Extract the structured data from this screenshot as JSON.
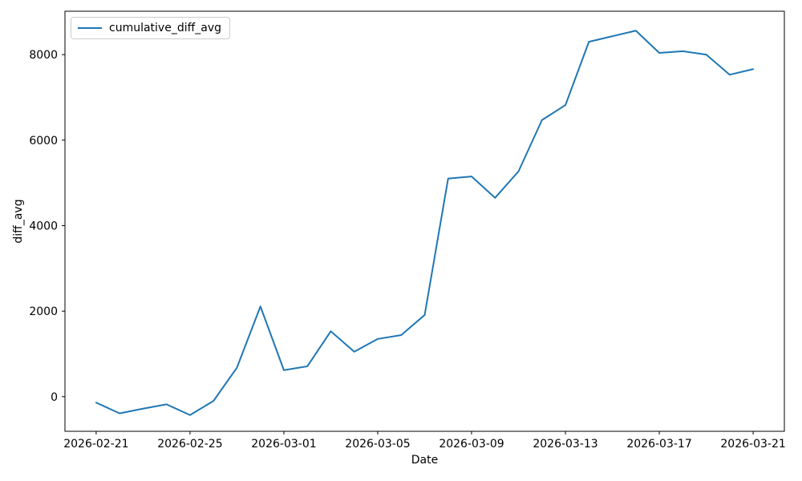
{
  "figure": {
    "xlabel": "Date",
    "ylabel": "diff_avg",
    "legend_label": "cumulative_diff_avg",
    "background_color": "#ffffff",
    "text_color": "#000000"
  },
  "chart_data": {
    "type": "line",
    "title": "",
    "xlabel": "Date",
    "ylabel": "diff_avg",
    "grid": false,
    "legend_position": "upper-left",
    "line_color": "#1f77b4",
    "axis_color": "#000000",
    "series": [
      {
        "name": "cumulative_diff_avg",
        "x": [
          "2026-02-21",
          "2026-02-22",
          "2026-02-23",
          "2026-02-24",
          "2026-02-25",
          "2026-02-26",
          "2026-02-27",
          "2026-02-28",
          "2026-03-01",
          "2026-03-02",
          "2026-03-03",
          "2026-03-04",
          "2026-03-05",
          "2026-03-06",
          "2026-03-07",
          "2026-03-08",
          "2026-03-09",
          "2026-03-10",
          "2026-03-11",
          "2026-03-12",
          "2026-03-13",
          "2026-03-14",
          "2026-03-15",
          "2026-03-16",
          "2026-03-17",
          "2026-03-18",
          "2026-03-19",
          "2026-03-20",
          "2026-03-21"
        ],
        "values": [
          -140,
          -390,
          -280,
          -180,
          -430,
          -100,
          680,
          2110,
          620,
          710,
          1530,
          1050,
          1350,
          1440,
          1910,
          5100,
          5150,
          4650,
          5270,
          6470,
          6820,
          8300,
          8430,
          8560,
          8040,
          8080,
          8000,
          7530,
          7660
        ]
      }
    ],
    "xticks": {
      "days": [
        0,
        4,
        8,
        12,
        16,
        20,
        24,
        28
      ],
      "labels": [
        "2026-02-21",
        "2026-02-25",
        "2026-03-01",
        "2026-03-05",
        "2026-03-09",
        "2026-03-13",
        "2026-03-17",
        "2026-03-21"
      ]
    },
    "yticks": [
      0,
      2000,
      4000,
      6000,
      8000
    ],
    "xlim_days": [
      -1.33,
      29.33
    ],
    "ylim": [
      -810,
      9015
    ]
  }
}
